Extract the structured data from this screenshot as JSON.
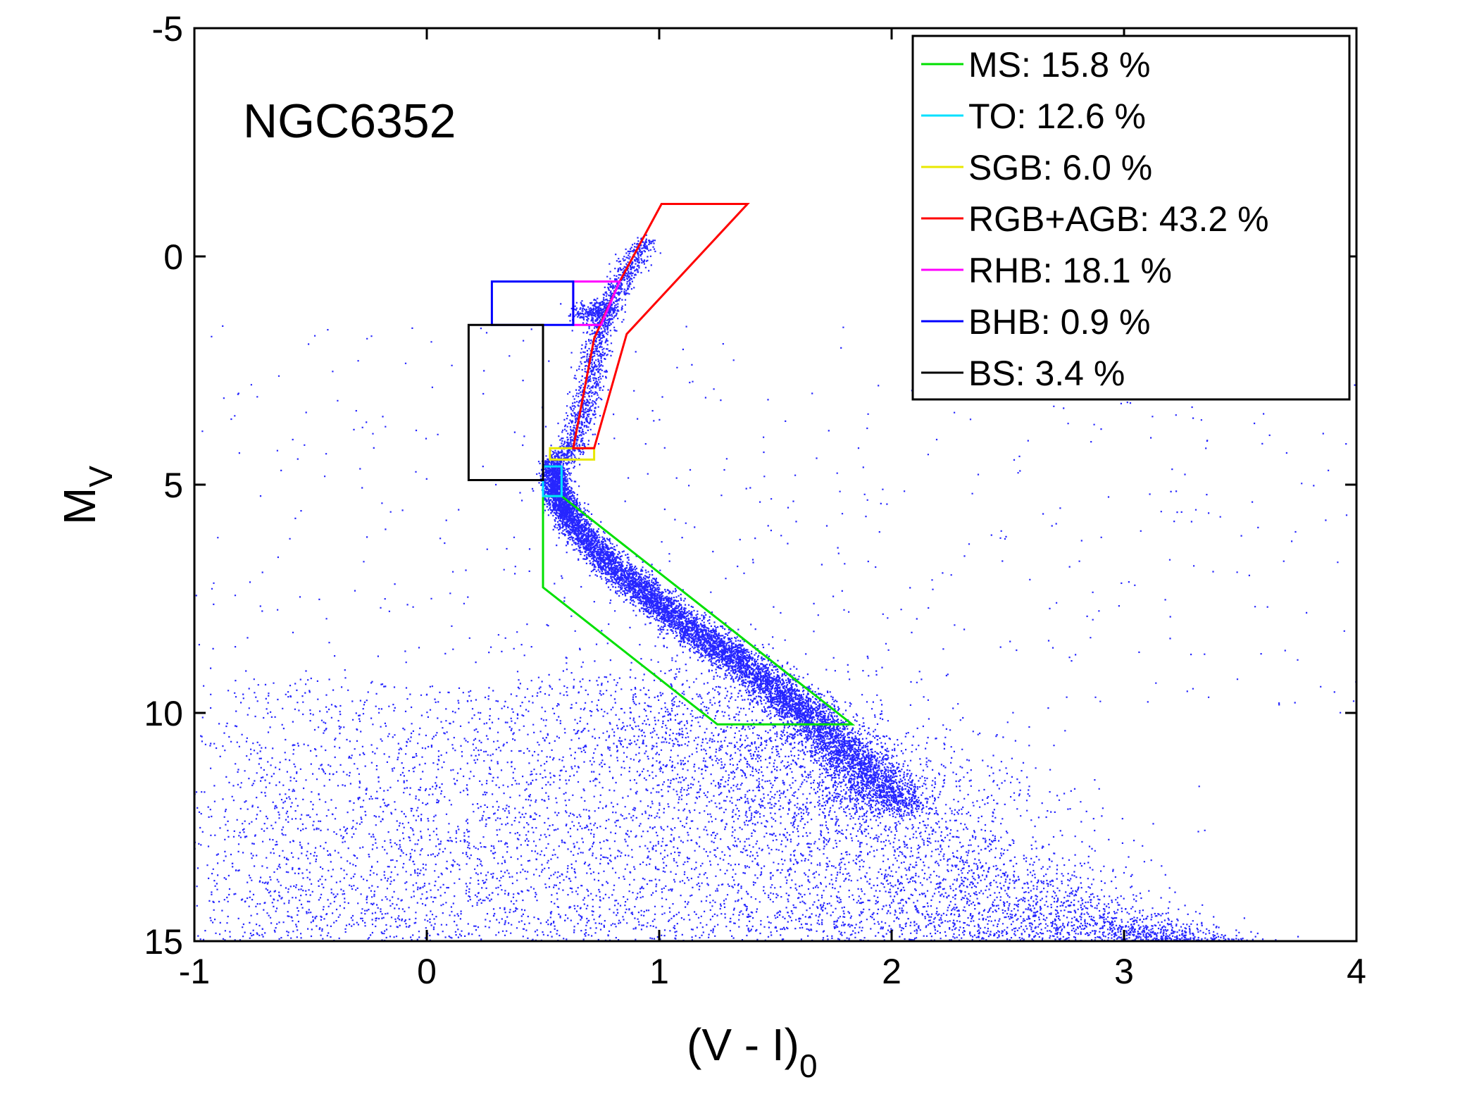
{
  "chart_data": {
    "type": "scatter",
    "title": "",
    "panel_label": "NGC6352",
    "xlabel": {
      "main": "(V - I)",
      "sub": "0"
    },
    "ylabel": {
      "main": "M",
      "sub": "V"
    },
    "xlim": [
      -1,
      4
    ],
    "ylim": [
      15,
      -5
    ],
    "y_inverted": true,
    "grid": false,
    "legend_position": "top-right",
    "xticks": [
      -1,
      0,
      1,
      2,
      3,
      4
    ],
    "xtick_labels": [
      "-1",
      "0",
      "1",
      "2",
      "3",
      "4"
    ],
    "yticks": [
      -5,
      0,
      5,
      10,
      15
    ],
    "ytick_labels": [
      "-5",
      "0",
      "5",
      "10",
      "15"
    ],
    "point_color": "#0000ff",
    "regions": [
      {
        "name": "MS",
        "label": "MS: 15.8 %",
        "color": "#00e000",
        "polygon": [
          [
            0.5,
            5.25
          ],
          [
            0.58,
            5.25
          ],
          [
            1.83,
            10.25
          ],
          [
            1.25,
            10.25
          ],
          [
            0.5,
            7.25
          ]
        ]
      },
      {
        "name": "TO",
        "label": "TO: 12.6 %",
        "color": "#00e0ff",
        "polygon": [
          [
            0.5,
            4.6
          ],
          [
            0.58,
            4.6
          ],
          [
            0.58,
            5.25
          ],
          [
            0.5,
            5.25
          ]
        ]
      },
      {
        "name": "SGB",
        "label": "SGB: 6.0 %",
        "color": "#e8e800",
        "polygon": [
          [
            0.53,
            4.2
          ],
          [
            0.72,
            4.2
          ],
          [
            0.72,
            4.45
          ],
          [
            0.53,
            4.45
          ]
        ]
      },
      {
        "name": "RGB+AGB",
        "label": "RGB+AGB: 43.2 %",
        "color": "#ff0000",
        "polygon": [
          [
            0.63,
            4.2
          ],
          [
            0.72,
            1.8
          ],
          [
            0.83,
            0.55
          ],
          [
            1.01,
            -1.15
          ],
          [
            1.38,
            -1.15
          ],
          [
            0.86,
            1.7
          ],
          [
            0.72,
            4.2
          ]
        ]
      },
      {
        "name": "RHB",
        "label": "RHB: 18.1 %",
        "color": "#ff00ff",
        "polygon": [
          [
            0.63,
            0.55
          ],
          [
            0.83,
            0.55
          ],
          [
            0.75,
            1.5
          ],
          [
            0.63,
            1.5
          ]
        ]
      },
      {
        "name": "BHB",
        "label": "BHB: 0.9 %",
        "color": "#0000ff",
        "polygon": [
          [
            0.28,
            0.55
          ],
          [
            0.63,
            0.55
          ],
          [
            0.63,
            1.5
          ],
          [
            0.28,
            1.5
          ]
        ]
      },
      {
        "name": "BS",
        "label": "BS: 3.4 %",
        "color": "#000000",
        "polygon": [
          [
            0.18,
            1.5
          ],
          [
            0.5,
            1.5
          ],
          [
            0.5,
            4.9
          ],
          [
            0.18,
            4.9
          ]
        ]
      }
    ],
    "sequences": {
      "main_sequence_ridge": [
        [
          0.55,
          4.5
        ],
        [
          0.55,
          5.1
        ],
        [
          0.6,
          5.6
        ],
        [
          0.7,
          6.3
        ],
        [
          0.85,
          7.0
        ],
        [
          1.0,
          7.6
        ],
        [
          1.15,
          8.2
        ],
        [
          1.3,
          8.7
        ],
        [
          1.45,
          9.3
        ],
        [
          1.6,
          9.9
        ],
        [
          1.75,
          10.6
        ],
        [
          1.9,
          11.3
        ],
        [
          2.05,
          12.1
        ]
      ],
      "red_giant_ridge": [
        [
          0.58,
          4.45
        ],
        [
          0.63,
          4.0
        ],
        [
          0.68,
          3.2
        ],
        [
          0.71,
          2.4
        ],
        [
          0.74,
          1.6
        ],
        [
          0.79,
          0.9
        ],
        [
          0.86,
          0.3
        ],
        [
          0.95,
          -0.4
        ]
      ],
      "red_clump": {
        "color": 0.72,
        "mag": 1.2
      },
      "field_spread": {
        "color_range": [
          -1,
          4
        ],
        "mag_range": [
          9,
          15
        ]
      }
    }
  }
}
